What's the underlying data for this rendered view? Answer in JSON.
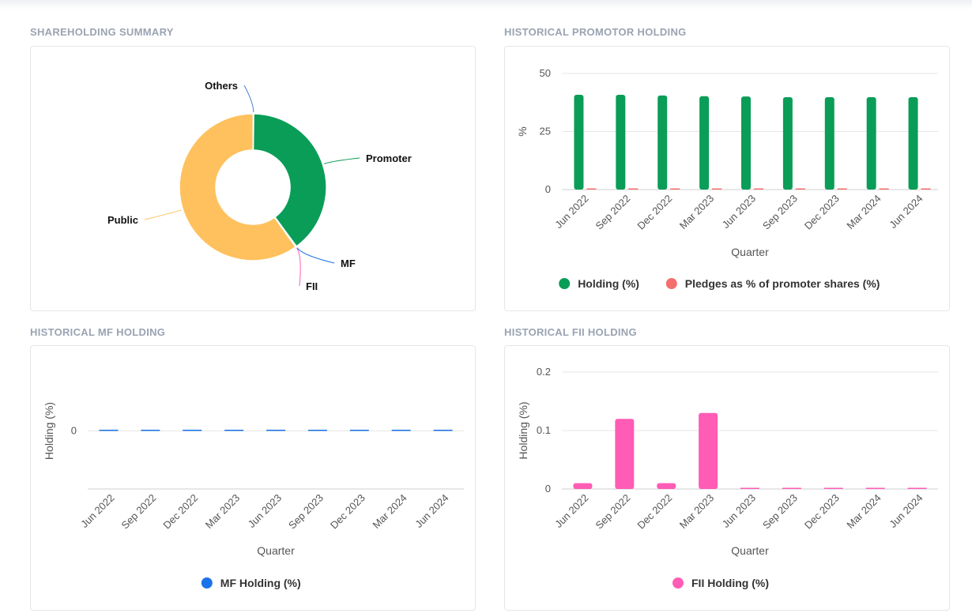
{
  "sections": {
    "shareholding_summary": "SHAREHOLDING SUMMARY",
    "promoter": "HISTORICAL PROMOTOR HOLDING",
    "mf": "HISTORICAL MF HOLDING",
    "fii": "HISTORICAL FII HOLDING"
  },
  "chart_data": [
    {
      "id": "summary",
      "type": "pie",
      "title": "SHAREHOLDING SUMMARY",
      "slices": [
        {
          "label": "Promoter",
          "value": 39.9,
          "color": "#0a9d58"
        },
        {
          "label": "MF",
          "value": 0.05,
          "color": "#1a73e8"
        },
        {
          "label": "FII",
          "value": 0.05,
          "color": "#ff5cb6"
        },
        {
          "label": "Public",
          "value": 59.95,
          "color": "#ffc15e"
        },
        {
          "label": "Others",
          "value": 0.05,
          "color": "#4a7fcf"
        }
      ]
    },
    {
      "id": "promoter",
      "type": "bar",
      "title": "HISTORICAL PROMOTOR HOLDING",
      "categories": [
        "Jun 2022",
        "Sep 2022",
        "Dec 2022",
        "Mar 2023",
        "Jun 2023",
        "Sep 2023",
        "Dec 2023",
        "Mar 2024",
        "Jun 2024"
      ],
      "series": [
        {
          "name": "Holding (%)",
          "color": "#0a9d58",
          "values": [
            40.8,
            40.8,
            40.5,
            40.2,
            40.1,
            39.8,
            39.8,
            39.8,
            39.8
          ]
        },
        {
          "name": "Pledges as % of promoter shares (%)",
          "color": "#f46e6e",
          "values": [
            0.3,
            0.3,
            0.3,
            0.3,
            0.3,
            0.3,
            0.3,
            0.3,
            0.3
          ]
        }
      ],
      "xlabel": "Quarter",
      "ylabel": "%",
      "yticks": [
        "0",
        "25",
        "50"
      ],
      "ylim": [
        0,
        50
      ]
    },
    {
      "id": "mf",
      "type": "bar",
      "title": "HISTORICAL MF HOLDING",
      "categories": [
        "Jun 2022",
        "Sep 2022",
        "Dec 2022",
        "Mar 2023",
        "Jun 2023",
        "Sep 2023",
        "Dec 2023",
        "Mar 2024",
        "Jun 2024"
      ],
      "series": [
        {
          "name": "MF Holding (%)",
          "color": "#1a73e8",
          "values": [
            0,
            0,
            0,
            0,
            0,
            0,
            0,
            0,
            0
          ]
        }
      ],
      "xlabel": "Quarter",
      "ylabel": "Holding (%)",
      "yticks": [
        "0"
      ],
      "ylim": [
        -1,
        1
      ]
    },
    {
      "id": "fii",
      "type": "bar",
      "title": "HISTORICAL FII HOLDING",
      "categories": [
        "Jun 2022",
        "Sep 2022",
        "Dec 2022",
        "Mar 2023",
        "Jun 2023",
        "Sep 2023",
        "Dec 2023",
        "Mar 2024",
        "Jun 2024"
      ],
      "series": [
        {
          "name": "FII Holding (%)",
          "color": "#ff5cb6",
          "values": [
            0.01,
            0.12,
            0.01,
            0.13,
            0.002,
            0.002,
            0.002,
            0.002,
            0.002
          ]
        }
      ],
      "xlabel": "Quarter",
      "ylabel": "Holding (%)",
      "yticks": [
        "0",
        "0.1",
        "0.2"
      ],
      "ylim": [
        0,
        0.2
      ]
    }
  ]
}
